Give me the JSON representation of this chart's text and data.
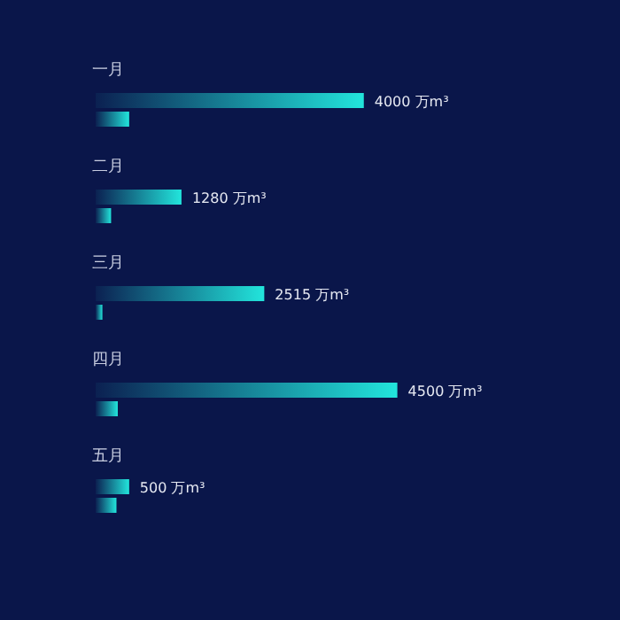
{
  "chart_data": {
    "type": "bar",
    "orientation": "horizontal",
    "tick_labels": "y",
    "categories": [
      "一月",
      "二月",
      "三月",
      "四月",
      "五月"
    ],
    "series": [
      {
        "color": "#22e5dc",
        "values": [
          4000,
          1280,
          2515,
          4500,
          500
        ],
        "value_labels": [
          "4000 万m³",
          "1280 万m³",
          "2515 万m³",
          "4500 万m³",
          "500 万m³"
        ]
      },
      {
        "color": "#22e5dc",
        "values": [
          500,
          230,
          100,
          330,
          310
        ]
      }
    ]
  }
}
